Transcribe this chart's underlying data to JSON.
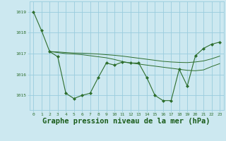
{
  "background_color": "#cce8f0",
  "grid_color": "#99ccdd",
  "line_color": "#2d6e2d",
  "marker_color": "#2d6e2d",
  "xlabel": "Graphe pression niveau de la mer (hPa)",
  "xlabel_fontsize": 7.5,
  "xlabel_color": "#1a5c1a",
  "ylabel_ticks": [
    1015,
    1016,
    1017,
    1018,
    1019
  ],
  "xlim": [
    -0.5,
    23.5
  ],
  "ylim": [
    1014.3,
    1019.5
  ],
  "xticks": [
    0,
    1,
    2,
    3,
    4,
    5,
    6,
    7,
    8,
    9,
    10,
    11,
    12,
    13,
    14,
    15,
    16,
    17,
    18,
    19,
    20,
    21,
    22,
    23
  ],
  "series1": {
    "x": [
      0,
      1,
      2,
      3,
      4,
      5,
      6,
      7,
      8,
      9,
      10,
      11,
      12,
      13,
      14,
      15,
      16,
      17,
      18,
      19,
      20,
      21,
      22,
      23
    ],
    "y": [
      1019.0,
      1018.1,
      1017.1,
      1016.85,
      1015.1,
      1014.85,
      1015.0,
      1015.1,
      1015.85,
      1016.55,
      1016.45,
      1016.6,
      1016.55,
      1016.55,
      1015.85,
      1015.0,
      1014.75,
      1014.75,
      1016.25,
      1015.45,
      1016.9,
      1017.25,
      1017.45,
      1017.55
    ]
  },
  "series2": {
    "x": [
      2,
      3,
      4,
      5,
      6,
      7,
      8,
      9,
      10,
      11,
      12,
      13,
      14,
      15,
      16,
      17,
      18,
      19,
      20,
      21,
      22,
      23
    ],
    "y": [
      1017.1,
      1017.08,
      1017.05,
      1017.03,
      1017.02,
      1017.0,
      1016.98,
      1016.95,
      1016.92,
      1016.88,
      1016.83,
      1016.78,
      1016.73,
      1016.68,
      1016.63,
      1016.6,
      1016.58,
      1016.57,
      1016.6,
      1016.65,
      1016.75,
      1016.88
    ]
  },
  "series3": {
    "x": [
      2,
      3,
      4,
      5,
      6,
      7,
      8,
      9,
      10,
      11,
      12,
      13,
      14,
      15,
      16,
      17,
      18,
      19,
      20,
      21,
      22,
      23
    ],
    "y": [
      1017.1,
      1017.05,
      1017.0,
      1016.98,
      1016.95,
      1016.9,
      1016.85,
      1016.8,
      1016.72,
      1016.62,
      1016.55,
      1016.5,
      1016.45,
      1016.4,
      1016.35,
      1016.3,
      1016.25,
      1016.2,
      1016.18,
      1016.22,
      1016.38,
      1016.52
    ]
  }
}
